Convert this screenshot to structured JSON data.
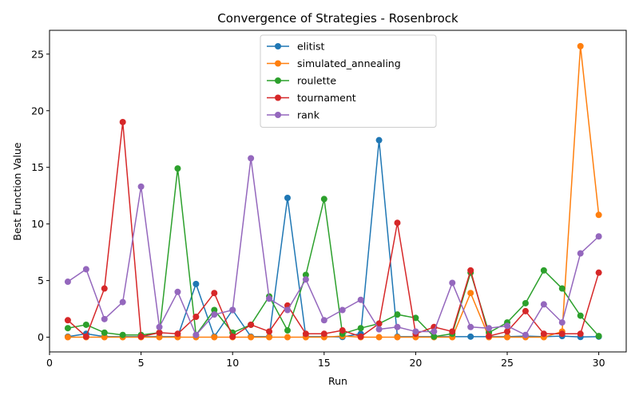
{
  "chart_data": {
    "type": "line",
    "title": "Convergence of Strategies - Rosenbrock",
    "xlabel": "Run",
    "ylabel": "Best Function Value",
    "xlim": [
      0,
      31.5
    ],
    "ylim": [
      -1.3,
      27.1
    ],
    "xticks": [
      0,
      5,
      10,
      15,
      20,
      25,
      30
    ],
    "yticks": [
      0,
      5,
      10,
      15,
      20,
      25
    ],
    "legend_position": "upper-center",
    "grid": false,
    "x": [
      1,
      2,
      3,
      4,
      5,
      6,
      7,
      8,
      9,
      10,
      11,
      12,
      13,
      14,
      15,
      16,
      17,
      18,
      19,
      20,
      21,
      22,
      23,
      24,
      25,
      26,
      27,
      28,
      29,
      30
    ],
    "series": [
      {
        "name": "elitist",
        "color": "#1f77b4",
        "values": [
          0.05,
          0.3,
          0.05,
          0.05,
          0.05,
          0.05,
          0.05,
          4.7,
          0.05,
          2.4,
          0.05,
          0.05,
          12.3,
          0.05,
          0.05,
          0.02,
          0.3,
          17.4,
          0.05,
          0.05,
          0.05,
          0.05,
          0.05,
          0.05,
          0.05,
          0.1,
          0.05,
          0.1,
          0.02,
          0.05
        ]
      },
      {
        "name": "simulated_annealing",
        "color": "#ff7f0e",
        "values": [
          0.0,
          0.0,
          0.0,
          0.0,
          0.0,
          0.0,
          0.0,
          0.0,
          0.0,
          0.0,
          0.0,
          0.0,
          0.0,
          0.0,
          0.0,
          0.1,
          0.0,
          0.0,
          0.0,
          0.0,
          0.0,
          0.0,
          3.9,
          0.0,
          0.0,
          0.0,
          0.0,
          0.5,
          25.7,
          10.8
        ]
      },
      {
        "name": "roulette",
        "color": "#2ca02c",
        "values": [
          0.8,
          1.1,
          0.4,
          0.2,
          0.2,
          0.4,
          14.9,
          0.2,
          2.4,
          0.4,
          1.1,
          3.6,
          0.6,
          5.5,
          12.2,
          0.3,
          0.8,
          1.2,
          2.0,
          1.7,
          0.05,
          0.3,
          5.7,
          0.4,
          1.3,
          3.0,
          5.9,
          4.3,
          1.9,
          0.1
        ]
      },
      {
        "name": "tournament",
        "color": "#d62728",
        "values": [
          1.5,
          0.05,
          4.3,
          19.0,
          0.05,
          0.4,
          0.3,
          1.8,
          3.9,
          0.05,
          1.1,
          0.5,
          2.8,
          0.3,
          0.3,
          0.6,
          0.05,
          1.2,
          10.1,
          0.3,
          0.9,
          0.5,
          5.9,
          0.1,
          0.5,
          2.3,
          0.3,
          0.3,
          0.3,
          5.7
        ]
      },
      {
        "name": "rank",
        "color": "#9467bd",
        "values": [
          4.9,
          6.0,
          1.6,
          3.1,
          13.3,
          0.9,
          4.0,
          0.2,
          2.0,
          2.4,
          15.8,
          3.4,
          2.4,
          5.1,
          1.5,
          2.4,
          3.3,
          0.7,
          0.9,
          0.5,
          0.5,
          4.8,
          0.9,
          0.8,
          1.0,
          0.2,
          2.9,
          1.3,
          7.4,
          8.9
        ]
      }
    ]
  }
}
